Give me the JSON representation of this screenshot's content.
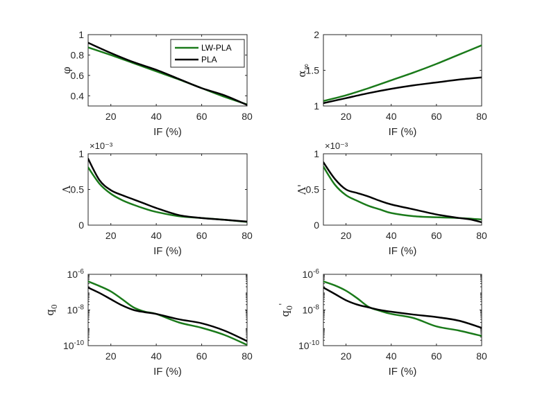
{
  "colors": {
    "lw_pla": "#1a7a1a",
    "pla": "#000000",
    "axis": "#262626"
  },
  "chart_data": [
    {
      "type": "line",
      "ylabel": "φ",
      "xlabel": "IF (%)",
      "xlim": [
        10,
        80
      ],
      "ylim": [
        0.3,
        1
      ],
      "yscale": "linear",
      "xticks": [
        "20",
        "40",
        "60",
        "80"
      ],
      "yticks": [
        "0.4",
        "0.6",
        "0.8",
        "1"
      ],
      "exponent_label": "",
      "legend": {
        "location": "top-right",
        "entries": [
          "LW-PLA",
          "PLA"
        ]
      },
      "series": [
        {
          "name": "LW-PLA",
          "color": "#1a7a1a",
          "x": [
            10,
            20,
            30,
            40,
            50,
            60,
            70,
            80
          ],
          "y": [
            0.875,
            0.8,
            0.72,
            0.64,
            0.56,
            0.475,
            0.39,
            0.315
          ]
        },
        {
          "name": "PLA",
          "color": "#000000",
          "x": [
            10,
            20,
            30,
            40,
            50,
            60,
            70,
            80
          ],
          "y": [
            0.92,
            0.82,
            0.73,
            0.655,
            0.565,
            0.475,
            0.405,
            0.31
          ]
        }
      ]
    },
    {
      "type": "line",
      "ylabel": "α∞",
      "xlabel": "IF (%)",
      "xlim": [
        10,
        80
      ],
      "ylim": [
        1,
        2
      ],
      "yscale": "linear",
      "xticks": [
        "20",
        "40",
        "60",
        "80"
      ],
      "yticks": [
        "1",
        "1.5",
        "2"
      ],
      "exponent_label": "",
      "series": [
        {
          "name": "LW-PLA",
          "color": "#1a7a1a",
          "x": [
            10,
            20,
            30,
            40,
            50,
            60,
            70,
            80
          ],
          "y": [
            1.07,
            1.15,
            1.25,
            1.36,
            1.47,
            1.59,
            1.72,
            1.85
          ]
        },
        {
          "name": "PLA",
          "color": "#000000",
          "x": [
            10,
            20,
            30,
            40,
            50,
            60,
            70,
            80
          ],
          "y": [
            1.04,
            1.11,
            1.18,
            1.24,
            1.29,
            1.33,
            1.37,
            1.4
          ]
        }
      ]
    },
    {
      "type": "line",
      "ylabel": "Λ",
      "xlabel": "IF (%)",
      "xlim": [
        10,
        80
      ],
      "ylim": [
        0,
        1
      ],
      "yscale": "linear",
      "xticks": [
        "20",
        "40",
        "60",
        "80"
      ],
      "yticks": [
        "0",
        "0.5",
        "1"
      ],
      "exponent_label": "×10⁻³",
      "series": [
        {
          "name": "LW-PLA",
          "color": "#1a7a1a",
          "x": [
            10,
            15,
            20,
            25,
            30,
            35,
            40,
            50,
            60,
            70,
            80
          ],
          "y": [
            0.81,
            0.58,
            0.44,
            0.35,
            0.285,
            0.23,
            0.185,
            0.125,
            0.1,
            0.075,
            0.045
          ]
        },
        {
          "name": "PLA",
          "color": "#000000",
          "x": [
            10,
            15,
            20,
            25,
            30,
            35,
            40,
            50,
            60,
            70,
            80
          ],
          "y": [
            0.93,
            0.63,
            0.49,
            0.42,
            0.36,
            0.3,
            0.24,
            0.14,
            0.1,
            0.075,
            0.05
          ]
        }
      ]
    },
    {
      "type": "line",
      "ylabel": "Λ'",
      "xlabel": "IF (%)",
      "xlim": [
        10,
        80
      ],
      "ylim": [
        0,
        1
      ],
      "yscale": "linear",
      "xticks": [
        "20",
        "40",
        "60",
        "80"
      ],
      "yticks": [
        "0",
        "0.5",
        "1"
      ],
      "exponent_label": "×10⁻³",
      "series": [
        {
          "name": "LW-PLA",
          "color": "#1a7a1a",
          "x": [
            10,
            15,
            20,
            25,
            30,
            35,
            40,
            50,
            60,
            70,
            80
          ],
          "y": [
            0.82,
            0.57,
            0.42,
            0.34,
            0.27,
            0.22,
            0.17,
            0.125,
            0.11,
            0.1,
            0.08
          ]
        },
        {
          "name": "PLA",
          "color": "#000000",
          "x": [
            10,
            15,
            20,
            25,
            30,
            35,
            40,
            50,
            60,
            70,
            75,
            80
          ],
          "y": [
            0.88,
            0.65,
            0.5,
            0.45,
            0.4,
            0.34,
            0.29,
            0.22,
            0.15,
            0.1,
            0.08,
            0.04
          ]
        }
      ]
    },
    {
      "type": "line",
      "ylabel": "q0",
      "xlabel": "IF (%)",
      "xlim": [
        10,
        80
      ],
      "ylim": [
        1e-10,
        1e-06
      ],
      "yscale": "log",
      "xticks": [
        "20",
        "40",
        "60",
        "80"
      ],
      "yticks": [
        "10-10",
        "10-8",
        "10-6"
      ],
      "exponent_label": "",
      "series": [
        {
          "name": "LW-PLA",
          "color": "#1a7a1a",
          "x": [
            10,
            15,
            20,
            25,
            30,
            35,
            40,
            50,
            60,
            70,
            80
          ],
          "y": [
            4e-07,
            2.2e-07,
            1.1e-07,
            4e-08,
            1.4e-08,
            8e-09,
            6e-09,
            2e-09,
            1e-09,
            4e-10,
            1.1e-10
          ]
        },
        {
          "name": "PLA",
          "color": "#000000",
          "x": [
            10,
            15,
            20,
            25,
            30,
            35,
            40,
            50,
            60,
            70,
            80
          ],
          "y": [
            1.8e-07,
            9e-08,
            4e-08,
            1.8e-08,
            1e-08,
            7.5e-09,
            6e-09,
            3e-09,
            1.8e-09,
            7e-10,
            1.8e-10
          ]
        }
      ]
    },
    {
      "type": "line",
      "ylabel": "q0'",
      "xlabel": "IF (%)",
      "xlim": [
        10,
        80
      ],
      "ylim": [
        1e-10,
        1e-06
      ],
      "yscale": "log",
      "xticks": [
        "20",
        "40",
        "60",
        "80"
      ],
      "yticks": [
        "10-10",
        "10-8",
        "10-6"
      ],
      "exponent_label": "",
      "series": [
        {
          "name": "LW-PLA",
          "color": "#1a7a1a",
          "x": [
            10,
            15,
            20,
            25,
            30,
            35,
            40,
            50,
            60,
            70,
            80
          ],
          "y": [
            4e-07,
            2.4e-07,
            1.2e-07,
            4.5e-08,
            1.5e-08,
            9e-09,
            6e-09,
            3.5e-09,
            1.2e-09,
            7e-10,
            3.5e-10
          ]
        },
        {
          "name": "PLA",
          "color": "#000000",
          "x": [
            10,
            15,
            20,
            25,
            30,
            35,
            40,
            50,
            60,
            70,
            80
          ],
          "y": [
            1.8e-07,
            8e-08,
            3.5e-08,
            2e-08,
            1.4e-08,
            1e-08,
            8e-09,
            5.5e-09,
            4e-09,
            2.5e-09,
            1e-09
          ]
        }
      ]
    }
  ]
}
